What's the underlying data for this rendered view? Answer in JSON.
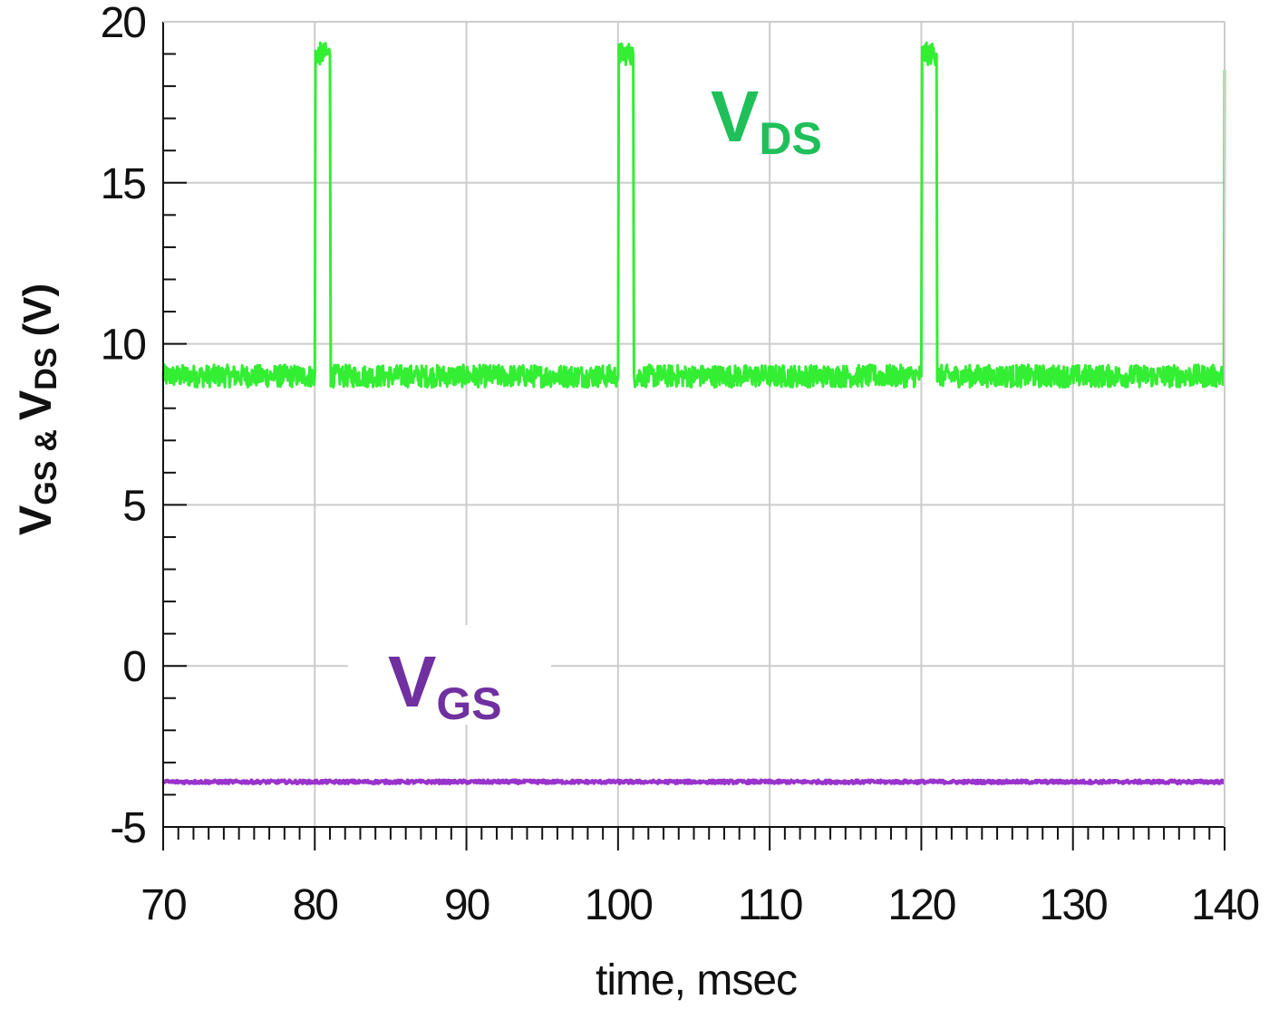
{
  "chart_data": {
    "type": "line",
    "xlabel": "time, msec",
    "ylabel": {
      "v1": "V",
      "sub1": "GS",
      "amp": "&",
      "v2": "V",
      "sub2": "DS",
      "unit": "(V)"
    },
    "xlim": [
      70,
      140
    ],
    "ylim": [
      -5,
      20
    ],
    "x_ticks": [
      70,
      80,
      90,
      100,
      110,
      120,
      130,
      140
    ],
    "y_ticks": [
      -5,
      0,
      5,
      10,
      15,
      20
    ],
    "x_minor_step": 1,
    "y_minor_step": 1,
    "grid": true,
    "series": [
      {
        "name": "VDS",
        "label_main": "V",
        "label_sub": "DS",
        "color": "#33ee33",
        "label_color": "#1fbf5a",
        "x": [
          70,
          80.0,
          80.05,
          81.0,
          81.05,
          100.0,
          100.05,
          101.0,
          101.05,
          120.0,
          120.05,
          121.0,
          121.05,
          139.95,
          140.0
        ],
        "y": [
          9.0,
          9.0,
          19.0,
          19.0,
          9.0,
          9.0,
          19.0,
          19.0,
          9.0,
          9.0,
          19.0,
          19.0,
          9.0,
          9.0,
          18.5
        ]
      },
      {
        "name": "VGS",
        "label_main": "V",
        "label_sub": "GS",
        "color": "#9933cc",
        "label_color": "#7030a0",
        "x": [
          70,
          140
        ],
        "y": [
          -3.6,
          -3.6
        ]
      }
    ]
  }
}
